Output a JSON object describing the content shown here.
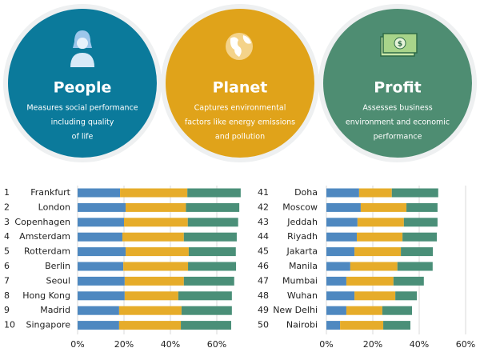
{
  "pillars": [
    {
      "title": "People",
      "description": [
        "Measures social performance",
        "including quality",
        "of life"
      ],
      "color": "#0b7a9b"
    },
    {
      "title": "Planet",
      "description": [
        "Captures environmental",
        "factors like energy emissions",
        "and pollution"
      ],
      "color": "#e0a31a"
    },
    {
      "title": "Profit",
      "description": [
        "Assesses business",
        "environment and economic",
        "performance"
      ],
      "color": "#4e8d72"
    }
  ],
  "chart_data": [
    {
      "type": "bar",
      "orientation": "horizontal",
      "stacked": true,
      "ranks": [
        1,
        2,
        3,
        4,
        5,
        6,
        7,
        8,
        9,
        10
      ],
      "categories": [
        "Frankfurt",
        "London",
        "Copenhagen",
        "Amsterdam",
        "Rotterdam",
        "Berlin",
        "Seoul",
        "Hong Kong",
        "Madrid",
        "Singapore"
      ],
      "series": [
        {
          "color": "#4e88c0",
          "values": [
            18.3,
            20.7,
            20,
            19.3,
            20.7,
            19.7,
            20.3,
            20.3,
            17.9,
            17.9
          ]
        },
        {
          "color": "#e6ac2a",
          "values": [
            29,
            26,
            27.5,
            26.5,
            27.2,
            27.9,
            25.5,
            23.1,
            26.9,
            26.6
          ]
        },
        {
          "color": "#4a8f78",
          "values": [
            23,
            23,
            21.7,
            22.8,
            20.3,
            20.7,
            21.7,
            23.1,
            21.7,
            21.7
          ]
        }
      ],
      "xlim": [
        0,
        70
      ],
      "xticks": [
        {
          "value": 0,
          "label": "0%"
        },
        {
          "value": 20,
          "label": "20%"
        },
        {
          "value": 40,
          "label": "40%"
        },
        {
          "value": 60,
          "label": "60%"
        }
      ],
      "grid": true
    },
    {
      "type": "bar",
      "orientation": "horizontal",
      "stacked": true,
      "ranks": [
        41,
        42,
        43,
        44,
        45,
        46,
        47,
        48,
        49,
        50
      ],
      "categories": [
        "Doha",
        "Moscow",
        "Jeddah",
        "Riyadh",
        "Jakarta",
        "Manila",
        "Mumbai",
        "Wuhan",
        "New Delhi",
        "Nairobi"
      ],
      "series": [
        {
          "color": "#4e88c0",
          "values": [
            14.1,
            14.8,
            13.4,
            13.1,
            12.1,
            10.3,
            8.6,
            12.1,
            8.6,
            5.9
          ]
        },
        {
          "color": "#e6ac2a",
          "values": [
            14.1,
            19.7,
            20,
            19.7,
            20,
            20.3,
            20.3,
            17.6,
            15.5,
            18.6
          ]
        },
        {
          "color": "#4a8f78",
          "values": [
            20,
            13.4,
            14.5,
            14.8,
            13.8,
            15.2,
            13.1,
            9.3,
            12.8,
            11.7
          ]
        }
      ],
      "xlim": [
        0,
        65
      ],
      "xticks": [
        {
          "value": 0,
          "label": "0%"
        },
        {
          "value": 20,
          "label": "20%"
        },
        {
          "value": 40,
          "label": "40%"
        },
        {
          "value": 60,
          "label": "60%"
        }
      ],
      "grid": true
    }
  ]
}
